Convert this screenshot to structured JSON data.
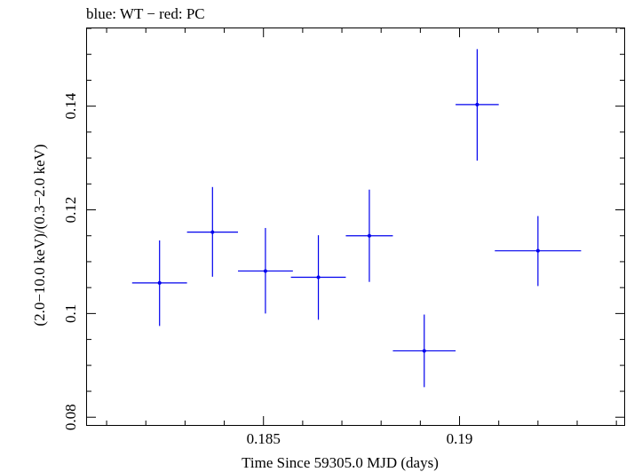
{
  "chart_data": {
    "type": "scatter",
    "title": "blue: WT − red: PC",
    "xlabel": "Time Since 59305.0 MJD (days)",
    "ylabel": "(2.0−10.0 keV)/(0.3−2.0 keV)",
    "xlim": [
      0.1805,
      0.1942
    ],
    "ylim": [
      0.0785,
      0.155
    ],
    "x_ticks": [
      {
        "value": 0.185,
        "label": "0.185"
      },
      {
        "value": 0.19,
        "label": "0.19"
      }
    ],
    "y_ticks": [
      {
        "value": 0.08,
        "label": "0.08"
      },
      {
        "value": 0.1,
        "label": "0.1"
      },
      {
        "value": 0.12,
        "label": "0.12"
      },
      {
        "value": 0.14,
        "label": "0.14"
      }
    ],
    "grid": false,
    "series": [
      {
        "color": "#0000ee",
        "points": [
          {
            "x": 0.18235,
            "xerr": 0.0007,
            "y": 0.1059,
            "ylo": 0.0976,
            "yhi": 0.1141
          },
          {
            "x": 0.1837,
            "xerr": 0.00065,
            "y": 0.1157,
            "ylo": 0.1071,
            "yhi": 0.1244
          },
          {
            "x": 0.18505,
            "xerr": 0.0007,
            "y": 0.1082,
            "ylo": 0.1,
            "yhi": 0.1165
          },
          {
            "x": 0.1864,
            "xerr": 0.0007,
            "y": 0.107,
            "ylo": 0.0988,
            "yhi": 0.1151
          },
          {
            "x": 0.1877,
            "xerr": 0.0006,
            "y": 0.115,
            "ylo": 0.1061,
            "yhi": 0.1239
          },
          {
            "x": 0.1891,
            "xerr": 0.0008,
            "y": 0.0928,
            "ylo": 0.0858,
            "yhi": 0.0998
          },
          {
            "x": 0.19045,
            "xerr": 0.00055,
            "y": 0.1403,
            "ylo": 0.1295,
            "yhi": 0.151
          },
          {
            "x": 0.192,
            "xerr": 0.0011,
            "y": 0.1121,
            "ylo": 0.1053,
            "yhi": 0.1188
          }
        ]
      }
    ]
  }
}
